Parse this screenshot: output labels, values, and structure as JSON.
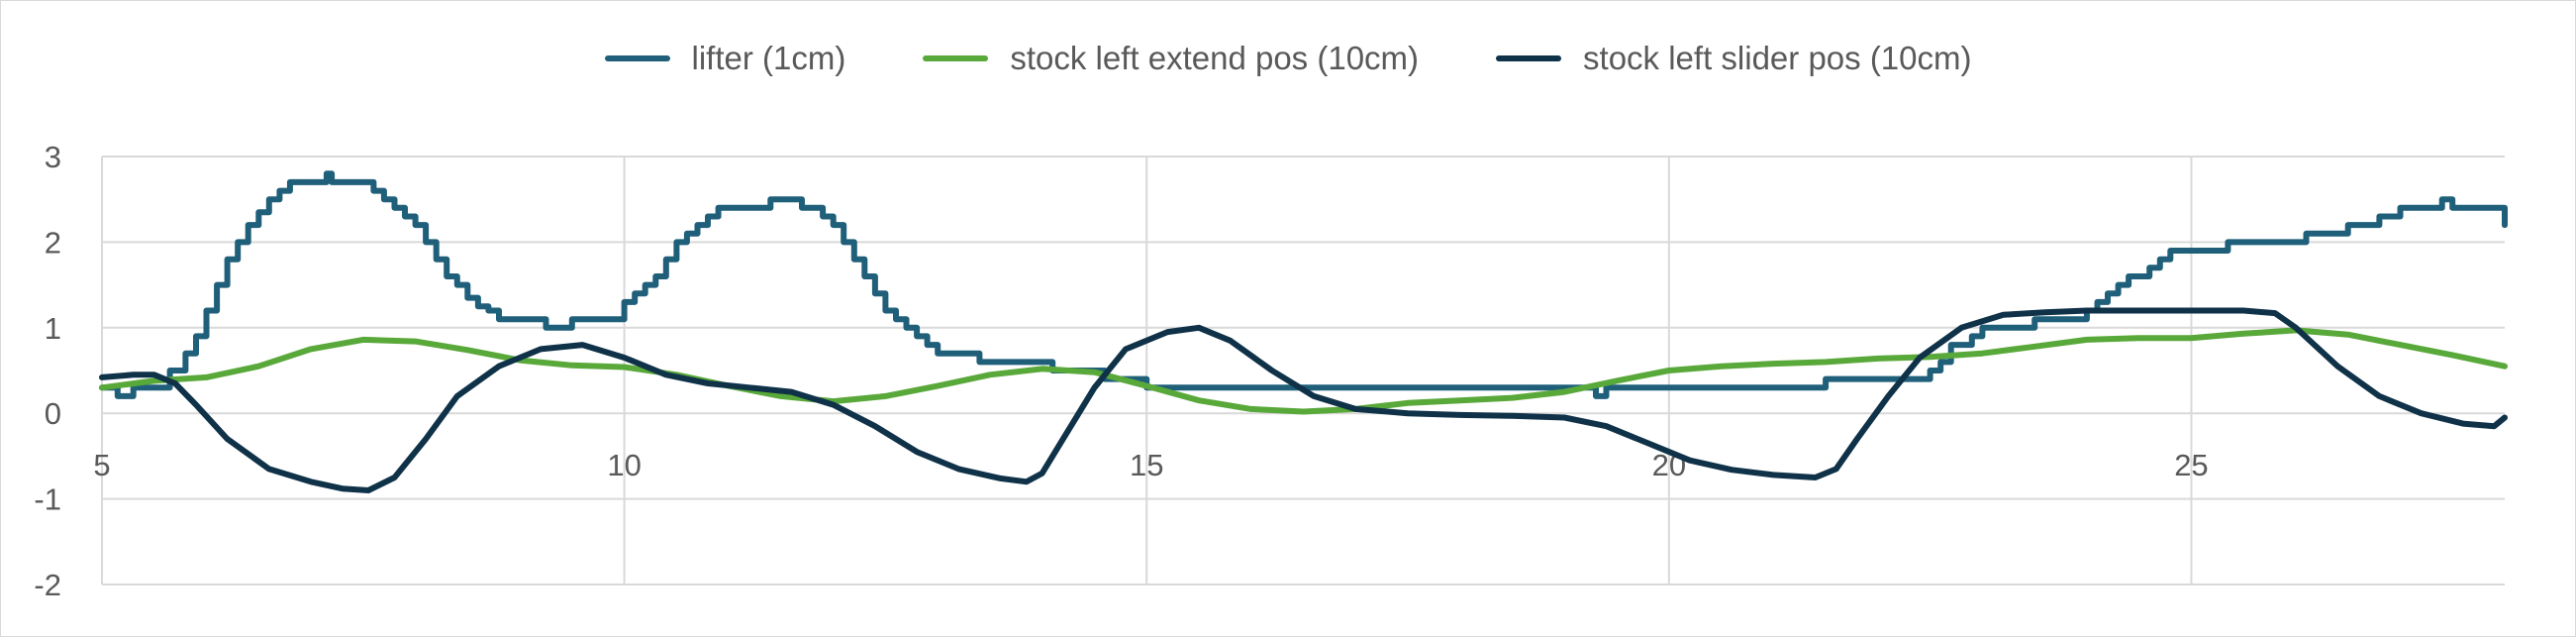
{
  "chart_data": {
    "type": "line",
    "title": "",
    "xlabel": "",
    "ylabel": "",
    "xlim": [
      5,
      28
    ],
    "ylim": [
      -2,
      3
    ],
    "x_ticks": [
      5,
      10,
      15,
      20,
      25
    ],
    "x_tick_labels": [
      "5",
      "10",
      "15",
      "20",
      "25"
    ],
    "y_ticks": [
      3,
      2,
      1,
      0,
      -1,
      -2
    ],
    "y_tick_labels": [
      "3",
      "2",
      "1",
      "0",
      "-1",
      "-2"
    ],
    "grid": true,
    "legend_position": "top",
    "series": [
      {
        "name": "lifter (1cm)",
        "color": "#1f5f7a",
        "step": true,
        "points": [
          [
            5.0,
            0.3
          ],
          [
            5.15,
            0.2
          ],
          [
            5.3,
            0.3
          ],
          [
            5.55,
            0.3
          ],
          [
            5.65,
            0.5
          ],
          [
            5.8,
            0.7
          ],
          [
            5.9,
            0.9
          ],
          [
            6.0,
            1.2
          ],
          [
            6.1,
            1.5
          ],
          [
            6.2,
            1.8
          ],
          [
            6.3,
            2.0
          ],
          [
            6.4,
            2.2
          ],
          [
            6.5,
            2.35
          ],
          [
            6.6,
            2.5
          ],
          [
            6.7,
            2.6
          ],
          [
            6.8,
            2.7
          ],
          [
            7.1,
            2.7
          ],
          [
            7.15,
            2.8
          ],
          [
            7.2,
            2.7
          ],
          [
            7.6,
            2.6
          ],
          [
            7.7,
            2.5
          ],
          [
            7.8,
            2.4
          ],
          [
            7.9,
            2.3
          ],
          [
            8.0,
            2.2
          ],
          [
            8.1,
            2.0
          ],
          [
            8.2,
            1.8
          ],
          [
            8.3,
            1.6
          ],
          [
            8.4,
            1.5
          ],
          [
            8.5,
            1.35
          ],
          [
            8.6,
            1.25
          ],
          [
            8.7,
            1.2
          ],
          [
            8.8,
            1.1
          ],
          [
            9.2,
            1.1
          ],
          [
            9.25,
            1.0
          ],
          [
            9.4,
            1.0
          ],
          [
            9.5,
            1.1
          ],
          [
            9.9,
            1.1
          ],
          [
            10.0,
            1.3
          ],
          [
            10.1,
            1.4
          ],
          [
            10.2,
            1.5
          ],
          [
            10.3,
            1.6
          ],
          [
            10.4,
            1.8
          ],
          [
            10.5,
            2.0
          ],
          [
            10.6,
            2.1
          ],
          [
            10.7,
            2.2
          ],
          [
            10.8,
            2.3
          ],
          [
            10.9,
            2.4
          ],
          [
            11.3,
            2.4
          ],
          [
            11.4,
            2.5
          ],
          [
            11.6,
            2.5
          ],
          [
            11.7,
            2.4
          ],
          [
            11.9,
            2.3
          ],
          [
            12.0,
            2.2
          ],
          [
            12.1,
            2.0
          ],
          [
            12.2,
            1.8
          ],
          [
            12.3,
            1.6
          ],
          [
            12.4,
            1.4
          ],
          [
            12.5,
            1.2
          ],
          [
            12.6,
            1.1
          ],
          [
            12.7,
            1.0
          ],
          [
            12.8,
            0.9
          ],
          [
            12.9,
            0.8
          ],
          [
            13.0,
            0.7
          ],
          [
            13.3,
            0.7
          ],
          [
            13.4,
            0.6
          ],
          [
            14.0,
            0.6
          ],
          [
            14.1,
            0.5
          ],
          [
            14.6,
            0.4
          ],
          [
            14.9,
            0.4
          ],
          [
            15.0,
            0.3
          ],
          [
            19.2,
            0.3
          ],
          [
            19.3,
            0.2
          ],
          [
            19.4,
            0.3
          ],
          [
            21.4,
            0.3
          ],
          [
            21.5,
            0.4
          ],
          [
            22.4,
            0.4
          ],
          [
            22.5,
            0.5
          ],
          [
            22.6,
            0.6
          ],
          [
            22.7,
            0.8
          ],
          [
            22.9,
            0.9
          ],
          [
            23.0,
            1.0
          ],
          [
            23.4,
            1.0
          ],
          [
            23.5,
            1.1
          ],
          [
            23.9,
            1.1
          ],
          [
            24.0,
            1.2
          ],
          [
            24.1,
            1.3
          ],
          [
            24.2,
            1.4
          ],
          [
            24.3,
            1.5
          ],
          [
            24.4,
            1.6
          ],
          [
            24.6,
            1.7
          ],
          [
            24.7,
            1.8
          ],
          [
            24.8,
            1.9
          ],
          [
            25.3,
            1.9
          ],
          [
            25.35,
            2.0
          ],
          [
            26.0,
            2.0
          ],
          [
            26.1,
            2.1
          ],
          [
            26.4,
            2.1
          ],
          [
            26.5,
            2.2
          ],
          [
            26.8,
            2.3
          ],
          [
            27.0,
            2.4
          ],
          [
            27.3,
            2.4
          ],
          [
            27.4,
            2.5
          ],
          [
            27.5,
            2.4
          ],
          [
            27.9,
            2.4
          ],
          [
            28.0,
            2.3
          ],
          [
            28.0,
            2.2
          ]
        ]
      },
      {
        "name": "stock left extend pos (10cm)",
        "color": "#59a83a",
        "step": false,
        "points": [
          [
            5.0,
            0.3
          ],
          [
            5.5,
            0.38
          ],
          [
            6.0,
            0.42
          ],
          [
            6.5,
            0.55
          ],
          [
            7.0,
            0.75
          ],
          [
            7.5,
            0.86
          ],
          [
            8.0,
            0.84
          ],
          [
            8.5,
            0.74
          ],
          [
            9.0,
            0.62
          ],
          [
            9.5,
            0.56
          ],
          [
            10.0,
            0.54
          ],
          [
            10.5,
            0.45
          ],
          [
            11.0,
            0.32
          ],
          [
            11.5,
            0.2
          ],
          [
            12.0,
            0.14
          ],
          [
            12.5,
            0.2
          ],
          [
            13.0,
            0.32
          ],
          [
            13.5,
            0.45
          ],
          [
            14.0,
            0.52
          ],
          [
            14.5,
            0.48
          ],
          [
            15.0,
            0.32
          ],
          [
            15.5,
            0.15
          ],
          [
            16.0,
            0.05
          ],
          [
            16.5,
            0.02
          ],
          [
            17.0,
            0.05
          ],
          [
            17.5,
            0.12
          ],
          [
            18.0,
            0.15
          ],
          [
            18.5,
            0.18
          ],
          [
            19.0,
            0.25
          ],
          [
            19.5,
            0.38
          ],
          [
            20.0,
            0.5
          ],
          [
            20.5,
            0.55
          ],
          [
            21.0,
            0.58
          ],
          [
            21.5,
            0.6
          ],
          [
            22.0,
            0.64
          ],
          [
            22.5,
            0.66
          ],
          [
            23.0,
            0.7
          ],
          [
            23.5,
            0.78
          ],
          [
            24.0,
            0.86
          ],
          [
            24.5,
            0.88
          ],
          [
            25.0,
            0.88
          ],
          [
            25.5,
            0.93
          ],
          [
            26.0,
            0.97
          ],
          [
            26.5,
            0.92
          ],
          [
            27.0,
            0.8
          ],
          [
            27.5,
            0.68
          ],
          [
            28.0,
            0.55
          ]
        ]
      },
      {
        "name": "stock left slider pos (10cm)",
        "color": "#0f3249",
        "step": false,
        "points": [
          [
            5.0,
            0.42
          ],
          [
            5.3,
            0.45
          ],
          [
            5.5,
            0.45
          ],
          [
            5.7,
            0.35
          ],
          [
            5.9,
            0.1
          ],
          [
            6.2,
            -0.3
          ],
          [
            6.6,
            -0.65
          ],
          [
            7.0,
            -0.8
          ],
          [
            7.3,
            -0.88
          ],
          [
            7.55,
            -0.9
          ],
          [
            7.8,
            -0.75
          ],
          [
            8.1,
            -0.3
          ],
          [
            8.4,
            0.2
          ],
          [
            8.8,
            0.55
          ],
          [
            9.2,
            0.75
          ],
          [
            9.6,
            0.8
          ],
          [
            10.0,
            0.65
          ],
          [
            10.4,
            0.45
          ],
          [
            10.8,
            0.35
          ],
          [
            11.2,
            0.3
          ],
          [
            11.6,
            0.25
          ],
          [
            12.0,
            0.1
          ],
          [
            12.4,
            -0.15
          ],
          [
            12.8,
            -0.45
          ],
          [
            13.2,
            -0.65
          ],
          [
            13.6,
            -0.76
          ],
          [
            13.85,
            -0.8
          ],
          [
            14.0,
            -0.7
          ],
          [
            14.2,
            -0.3
          ],
          [
            14.5,
            0.3
          ],
          [
            14.8,
            0.75
          ],
          [
            15.2,
            0.95
          ],
          [
            15.5,
            1.0
          ],
          [
            15.8,
            0.85
          ],
          [
            16.2,
            0.5
          ],
          [
            16.6,
            0.2
          ],
          [
            17.0,
            0.05
          ],
          [
            17.5,
            0.0
          ],
          [
            18.0,
            -0.02
          ],
          [
            18.5,
            -0.03
          ],
          [
            19.0,
            -0.05
          ],
          [
            19.4,
            -0.15
          ],
          [
            19.8,
            -0.35
          ],
          [
            20.2,
            -0.55
          ],
          [
            20.6,
            -0.66
          ],
          [
            21.0,
            -0.72
          ],
          [
            21.4,
            -0.75
          ],
          [
            21.6,
            -0.65
          ],
          [
            21.8,
            -0.3
          ],
          [
            22.1,
            0.2
          ],
          [
            22.4,
            0.65
          ],
          [
            22.8,
            1.0
          ],
          [
            23.2,
            1.15
          ],
          [
            23.6,
            1.18
          ],
          [
            24.0,
            1.2
          ],
          [
            24.5,
            1.2
          ],
          [
            25.0,
            1.2
          ],
          [
            25.5,
            1.2
          ],
          [
            25.8,
            1.17
          ],
          [
            26.0,
            1.0
          ],
          [
            26.4,
            0.55
          ],
          [
            26.8,
            0.2
          ],
          [
            27.2,
            0.0
          ],
          [
            27.6,
            -0.12
          ],
          [
            27.9,
            -0.15
          ],
          [
            28.0,
            -0.05
          ]
        ]
      }
    ]
  }
}
